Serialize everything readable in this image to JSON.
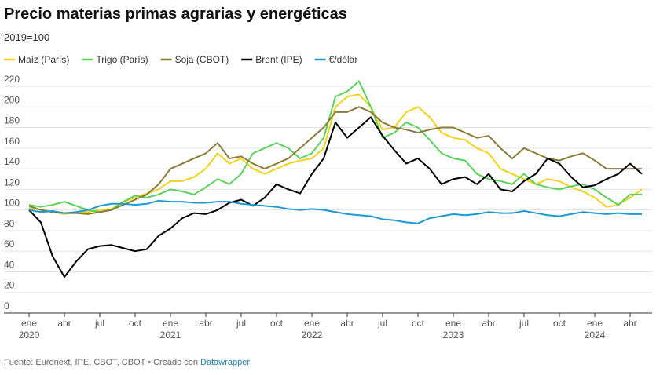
{
  "chart_data": {
    "type": "line",
    "title": "Precio materias primas agrarias y energéticas",
    "subtitle": "2019=100",
    "source": "Fuente: Euronext, IPE, CBOT, CBOT • Creado con",
    "credit": "Datawrapper",
    "categories": [
      "ene 2020",
      null,
      null,
      "abr",
      null,
      null,
      "jul",
      null,
      null,
      "oct",
      null,
      null,
      "ene 2021",
      null,
      null,
      "abr",
      null,
      null,
      "jul",
      null,
      null,
      "oct",
      null,
      null,
      "ene 2022",
      null,
      null,
      "abr",
      null,
      null,
      "jul",
      null,
      null,
      "oct",
      null,
      null,
      "ene 2023",
      null,
      null,
      "abr",
      null,
      null,
      "jul",
      null,
      null,
      "oct",
      null,
      null,
      "ene 2024",
      null,
      null,
      "abr",
      null
    ],
    "ylim": [
      0,
      220
    ],
    "yticks": [
      0,
      20,
      40,
      60,
      80,
      100,
      120,
      140,
      160,
      180,
      200,
      220
    ],
    "grid": true,
    "legend": "top-left",
    "series": [
      {
        "name": "Maíz (París)",
        "color": "#f2d31b",
        "values": [
          102,
          100,
          98,
          96,
          98,
          98,
          100,
          101,
          108,
          112,
          116,
          120,
          128,
          128,
          132,
          140,
          155,
          145,
          150,
          140,
          135,
          140,
          145,
          148,
          150,
          160,
          200,
          210,
          212,
          200,
          178,
          180,
          195,
          200,
          190,
          175,
          170,
          168,
          160,
          155,
          140,
          135,
          130,
          125,
          130,
          128,
          122,
          118,
          112,
          103,
          105,
          112,
          120
        ]
      },
      {
        "name": "Trigo (París)",
        "color": "#5cd15c",
        "values": [
          105,
          103,
          105,
          108,
          104,
          100,
          98,
          100,
          108,
          114,
          112,
          115,
          120,
          118,
          115,
          122,
          130,
          125,
          135,
          155,
          160,
          165,
          160,
          150,
          155,
          170,
          210,
          215,
          225,
          200,
          170,
          175,
          185,
          180,
          168,
          155,
          150,
          148,
          135,
          130,
          128,
          125,
          135,
          125,
          122,
          120,
          123,
          125,
          120,
          112,
          105,
          115,
          115
        ]
      },
      {
        "name": "Soja (CBOT)",
        "color": "#8b7b39",
        "values": [
          104,
          100,
          98,
          97,
          97,
          96,
          98,
          100,
          105,
          110,
          115,
          125,
          140,
          145,
          150,
          155,
          165,
          150,
          152,
          145,
          140,
          145,
          150,
          160,
          170,
          180,
          195,
          195,
          200,
          195,
          185,
          180,
          178,
          175,
          178,
          180,
          180,
          175,
          170,
          172,
          160,
          150,
          160,
          155,
          150,
          148,
          152,
          155,
          148,
          140,
          140,
          140,
          140
        ]
      },
      {
        "name": "Brent (IPE)",
        "color": "#000000",
        "values": [
          100,
          88,
          55,
          35,
          50,
          62,
          65,
          66,
          63,
          60,
          62,
          75,
          82,
          92,
          97,
          96,
          100,
          107,
          110,
          104,
          112,
          125,
          120,
          116,
          135,
          150,
          185,
          170,
          180,
          190,
          172,
          158,
          145,
          150,
          140,
          125,
          130,
          132,
          125,
          135,
          120,
          118,
          128,
          135,
          150,
          145,
          132,
          122,
          124,
          130,
          135,
          145,
          135
        ]
      },
      {
        "name": "€/dólar",
        "color": "#1d9bd1",
        "values": [
          100,
          98,
          99,
          97,
          98,
          100,
          104,
          106,
          106,
          105,
          106,
          109,
          108,
          108,
          107,
          107,
          108,
          108,
          106,
          105,
          104,
          103,
          101,
          100,
          101,
          100,
          98,
          96,
          95,
          94,
          91,
          90,
          88,
          87,
          92,
          94,
          96,
          95,
          96,
          98,
          97,
          97,
          99,
          97,
          95,
          94,
          96,
          98,
          97,
          96,
          97,
          96,
          96
        ]
      }
    ]
  }
}
